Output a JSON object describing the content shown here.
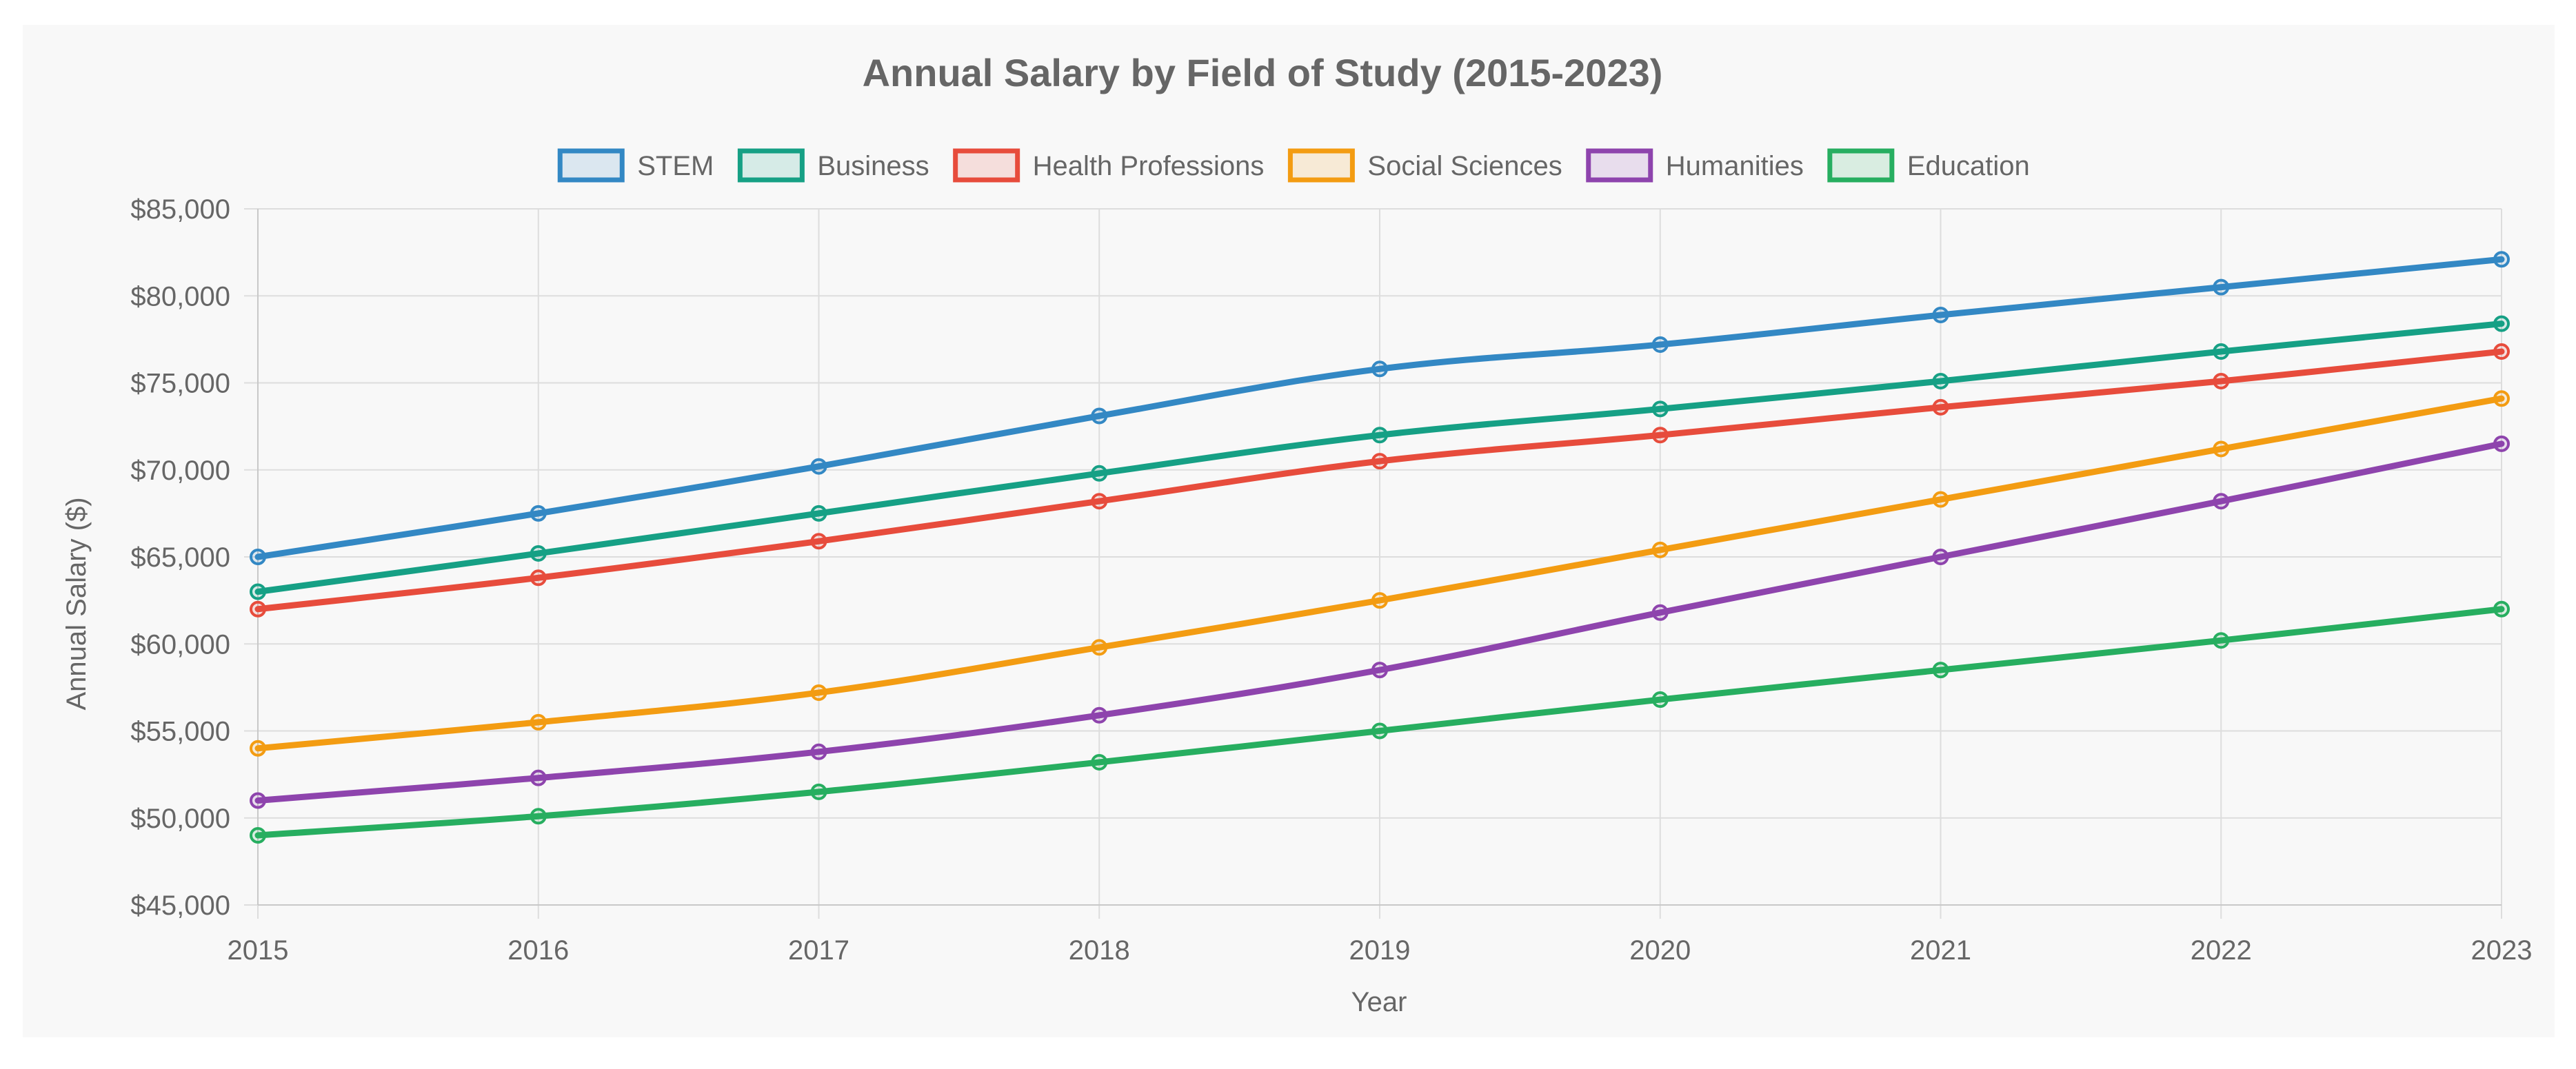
{
  "chart_data": {
    "type": "line",
    "title": "Annual Salary by Field of Study (2015-2023)",
    "xlabel": "Year",
    "ylabel": "Annual Salary ($)",
    "categories": [
      "2015",
      "2016",
      "2017",
      "2018",
      "2019",
      "2020",
      "2021",
      "2022",
      "2023"
    ],
    "ylim": [
      45000,
      85000
    ],
    "y_ticks": [
      "$85,000",
      "$80,000",
      "$75,000",
      "$70,000",
      "$65,000",
      "$60,000",
      "$55,000",
      "$50,000",
      "$45,000"
    ],
    "y_tick_values": [
      85000,
      80000,
      75000,
      70000,
      65000,
      60000,
      55000,
      50000,
      45000
    ],
    "grid": true,
    "legend_position": "top",
    "series": [
      {
        "name": "STEM",
        "color": "#3388c4",
        "values": [
          65000,
          67500,
          70200,
          73100,
          75800,
          77200,
          78900,
          80500,
          82100
        ]
      },
      {
        "name": "Business",
        "color": "#16a085",
        "values": [
          63000,
          65200,
          67500,
          69800,
          72000,
          73500,
          75100,
          76800,
          78400
        ]
      },
      {
        "name": "Health Professions",
        "color": "#e74c3c",
        "values": [
          62000,
          63800,
          65900,
          68200,
          70500,
          72000,
          73600,
          75100,
          76800
        ]
      },
      {
        "name": "Social Sciences",
        "color": "#f39c12",
        "values": [
          54000,
          55500,
          57200,
          59800,
          62500,
          65400,
          68300,
          71200,
          74100
        ]
      },
      {
        "name": "Humanities",
        "color": "#8e44ad",
        "values": [
          51000,
          52300,
          53800,
          55900,
          58500,
          61800,
          65000,
          68200,
          71500
        ]
      },
      {
        "name": "Education",
        "color": "#27ae60",
        "values": [
          49000,
          50100,
          51500,
          53200,
          55000,
          56800,
          58500,
          60200,
          62000
        ]
      }
    ]
  }
}
